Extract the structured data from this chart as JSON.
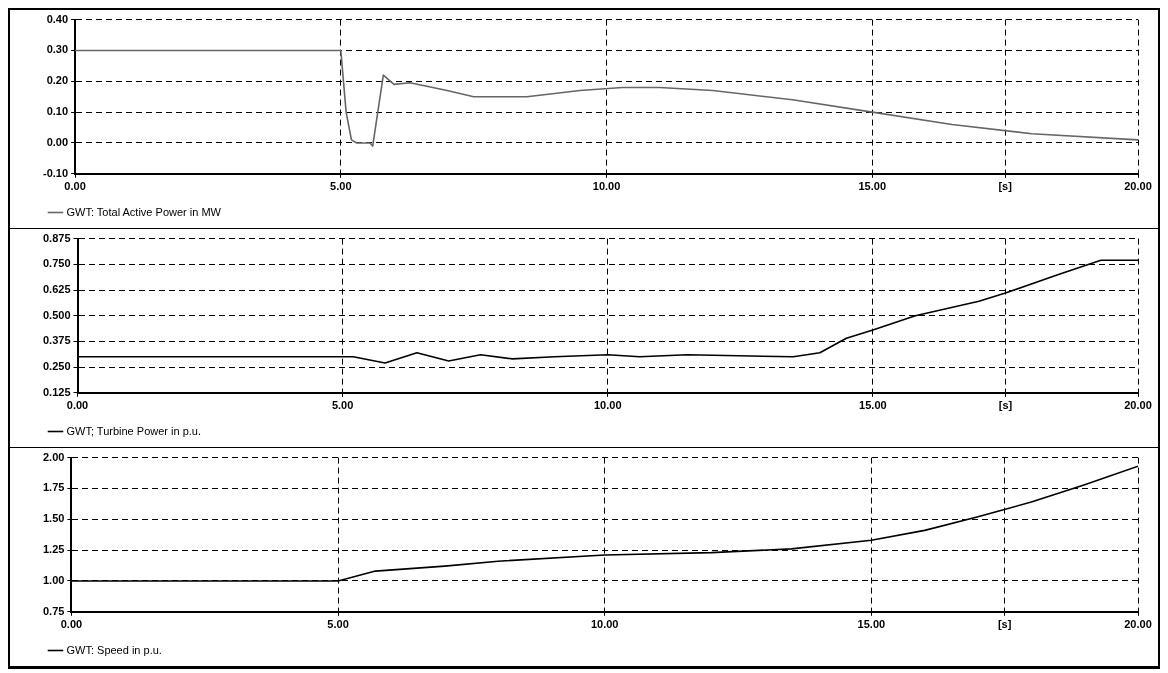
{
  "chart_data": [
    {
      "type": "line",
      "xlim": [
        0,
        20
      ],
      "xticks": [
        {
          "value": 0,
          "label": "0.00"
        },
        {
          "value": 5,
          "label": "5.00"
        },
        {
          "value": 10,
          "label": "10.00"
        },
        {
          "value": 15,
          "label": "15.00"
        },
        {
          "value": 17.5,
          "label": "[s]"
        },
        {
          "value": 20,
          "label": "20.00"
        }
      ],
      "ylim": [
        -0.1,
        0.4
      ],
      "yticks": [
        {
          "value": -0.1,
          "label": "-0.10"
        },
        {
          "value": 0,
          "label": "0.00"
        },
        {
          "value": 0.1,
          "label": "0.10"
        },
        {
          "value": 0.2,
          "label": "0.20"
        },
        {
          "value": 0.3,
          "label": "0.30"
        },
        {
          "value": 0.4,
          "label": "0.40"
        }
      ],
      "grid": true,
      "legend": "bottom left",
      "marker": "none",
      "line_style": "solid",
      "series": [
        {
          "name": "GWT: Total Active Power in MW",
          "color": "#666666",
          "x": [
            0,
            5.0,
            5.1,
            5.2,
            5.3,
            5.55,
            5.6,
            5.8,
            6.0,
            6.3,
            7.0,
            7.5,
            8.5,
            9.5,
            10.3,
            11.0,
            12.0,
            13.5,
            15.0,
            16.5,
            18.0,
            20.0
          ],
          "values": [
            0.3,
            0.3,
            0.1,
            0.01,
            0,
            0,
            -0.01,
            0.22,
            0.19,
            0.195,
            0.17,
            0.15,
            0.15,
            0.17,
            0.18,
            0.18,
            0.17,
            0.14,
            0.1,
            0.06,
            0.03,
            0.01
          ]
        }
      ]
    },
    {
      "type": "line",
      "xlim": [
        0,
        20
      ],
      "xticks": [
        {
          "value": 0,
          "label": "0.00"
        },
        {
          "value": 5,
          "label": "5.00"
        },
        {
          "value": 10,
          "label": "10.00"
        },
        {
          "value": 15,
          "label": "15.00"
        },
        {
          "value": 17.5,
          "label": "[s]"
        },
        {
          "value": 20,
          "label": "20.00"
        }
      ],
      "ylim": [
        0.125,
        0.875
      ],
      "yticks": [
        0.125,
        {
          "value": 0.25,
          "label": "0.250"
        },
        0.375,
        {
          "value": 0.5,
          "label": "0.500"
        },
        0.625,
        {
          "value": 0.75,
          "label": "0.750"
        },
        0.875
      ],
      "grid": true,
      "legend": "bottom left",
      "marker": "none",
      "line_style": "solid",
      "series": [
        {
          "name": "GWT; Turbine Power in p.u.",
          "color": "#000000",
          "x": [
            0,
            5.0,
            5.2,
            5.8,
            6.4,
            7.0,
            7.6,
            8.2,
            9.0,
            10.0,
            10.6,
            11.5,
            13.5,
            14.0,
            14.5,
            15.0,
            15.8,
            17.0,
            17.5,
            18.5,
            19.3,
            20.0
          ],
          "values": [
            0.3,
            0.3,
            0.3,
            0.27,
            0.32,
            0.28,
            0.31,
            0.29,
            0.3,
            0.31,
            0.3,
            0.31,
            0.3,
            0.32,
            0.39,
            0.43,
            0.5,
            0.57,
            0.61,
            0.7,
            0.77,
            0.77
          ]
        }
      ]
    },
    {
      "type": "line",
      "xlim": [
        0,
        20
      ],
      "xticks": [
        {
          "value": 0,
          "label": "0.00"
        },
        {
          "value": 5,
          "label": "5.00"
        },
        {
          "value": 10,
          "label": "10.00"
        },
        {
          "value": 15,
          "label": "15.00"
        },
        {
          "value": 17.5,
          "label": "[s]"
        },
        {
          "value": 20,
          "label": "20.00"
        }
      ],
      "ylim": [
        0.75,
        2.0
      ],
      "yticks": [
        {
          "value": 0.75,
          "label": "0.75"
        },
        {
          "value": 1.0,
          "label": "1.00"
        },
        {
          "value": 1.25,
          "label": "1.25"
        },
        {
          "value": 1.5,
          "label": "1.50"
        },
        {
          "value": 1.75,
          "label": "1.75"
        },
        {
          "value": 2.0,
          "label": "2.00"
        }
      ],
      "grid": true,
      "legend": "bottom left",
      "marker": "none",
      "line_style": "solid",
      "series": [
        {
          "name": "GWT: Speed in p.u.",
          "color": "#000000",
          "x": [
            0,
            5.0,
            5.7,
            7.0,
            8.0,
            10.0,
            12.0,
            13.5,
            15.0,
            16.0,
            17.0,
            18.0,
            19.0,
            20.0
          ],
          "values": [
            1.0,
            1.0,
            1.08,
            1.12,
            1.16,
            1.21,
            1.23,
            1.26,
            1.33,
            1.41,
            1.52,
            1.64,
            1.78,
            1.93
          ]
        }
      ]
    }
  ]
}
